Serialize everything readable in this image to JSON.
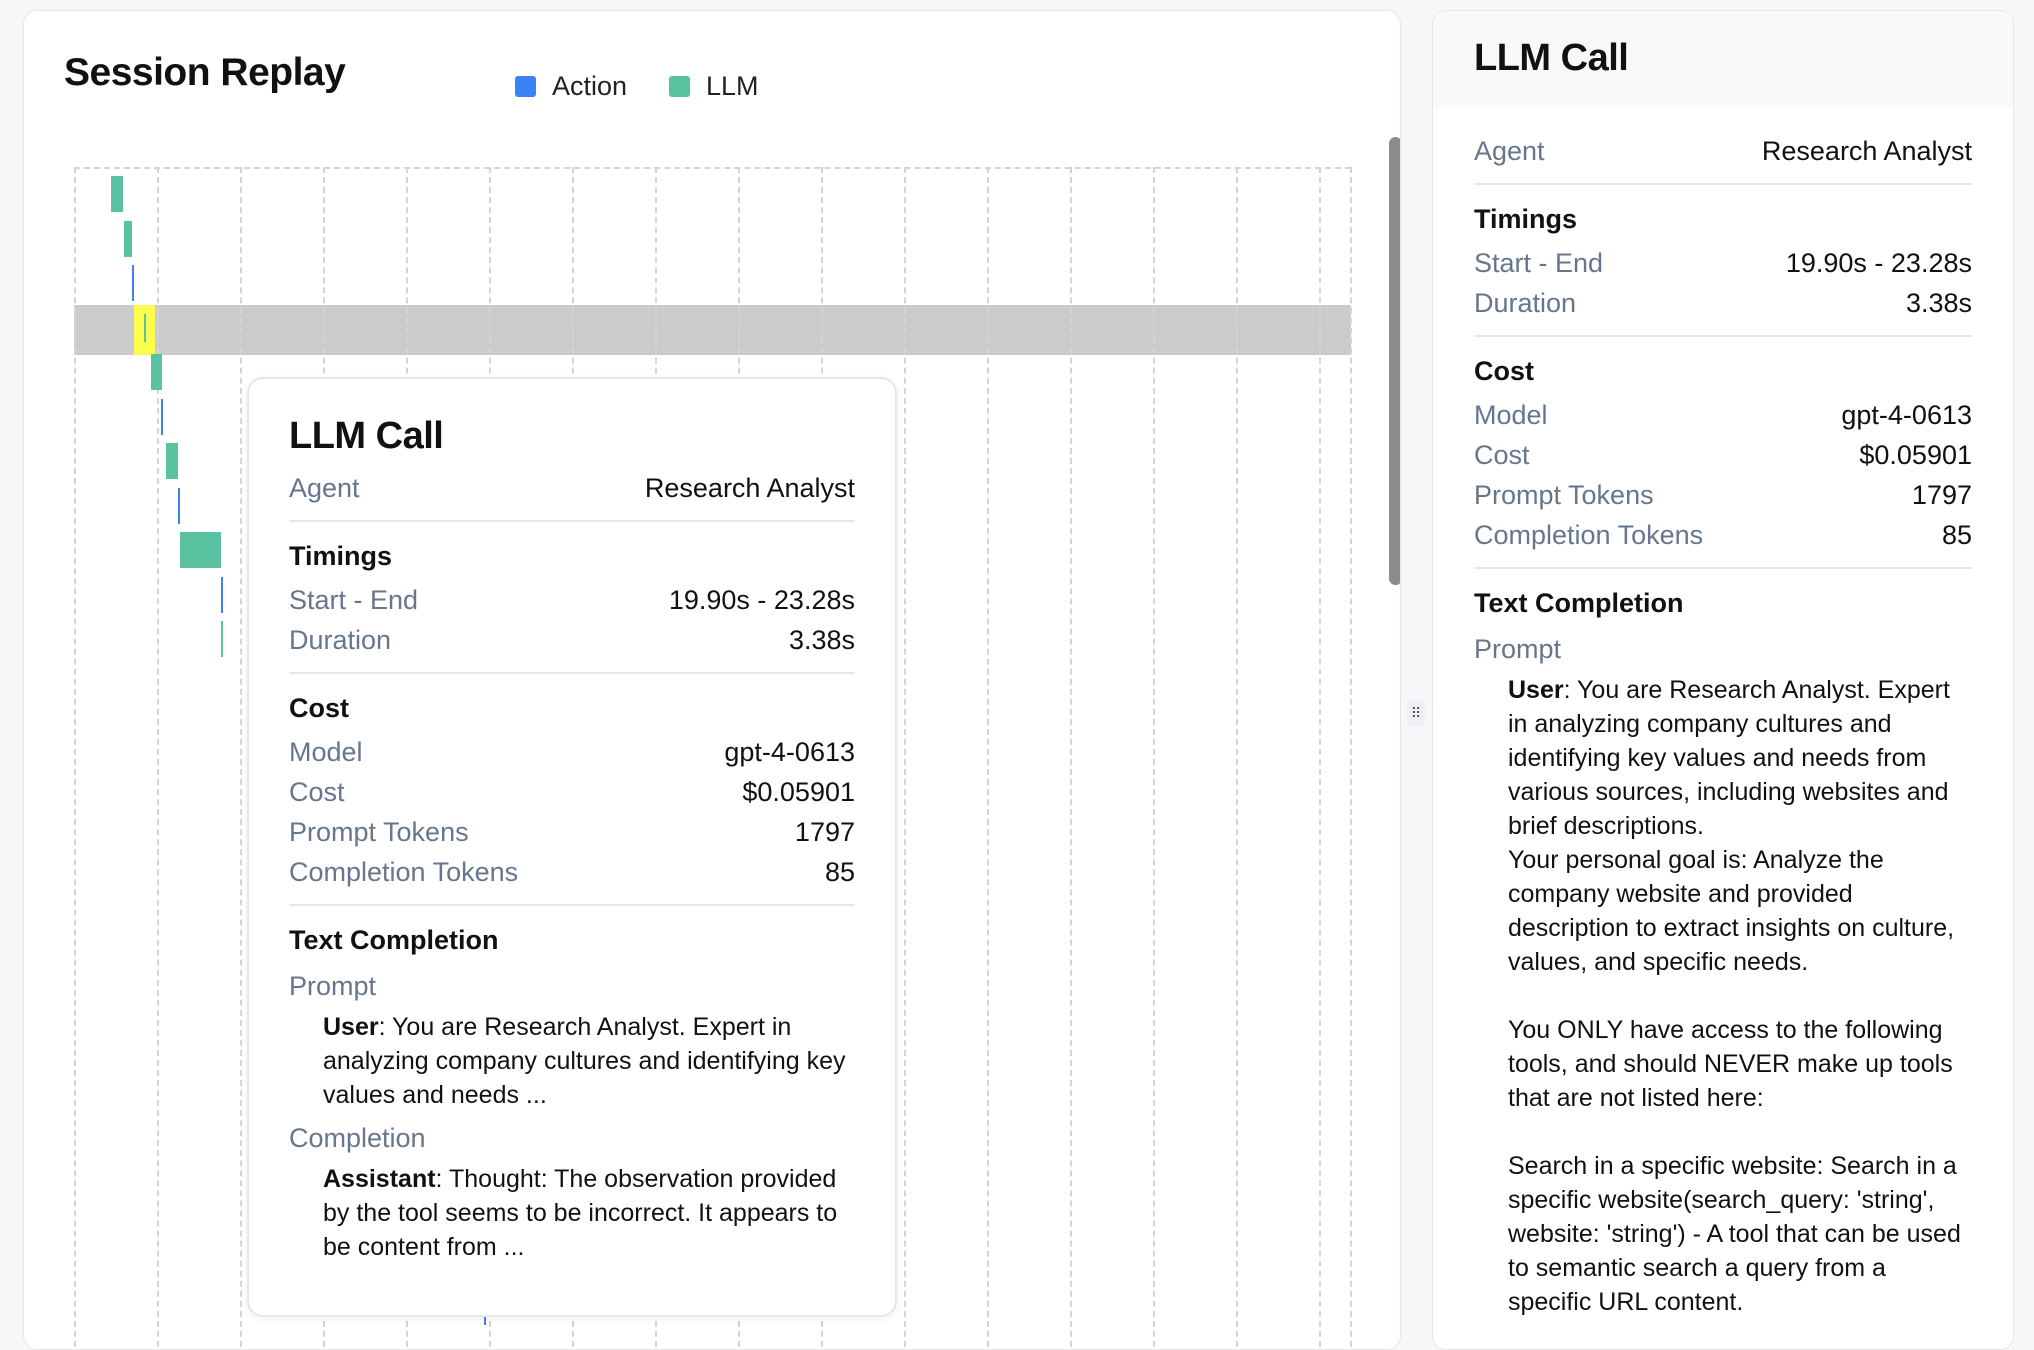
{
  "left_panel": {
    "title": "Session Replay",
    "legend": [
      {
        "label": "Action",
        "color": "#3b82f6"
      },
      {
        "label": "LLM",
        "color": "#5bc2a1"
      }
    ]
  },
  "chart_data": {
    "type": "gantt",
    "x_unit": "s",
    "highlight_color": "#fdfd4e",
    "colors": {
      "Action": "#3b82f6",
      "LLM": "#5bc2a1"
    },
    "highlighted_row": 3,
    "events": [
      {
        "row": 0,
        "type": "LLM",
        "start": 10.5,
        "end": 13.9
      },
      {
        "row": 1,
        "type": "LLM",
        "start": 14.1,
        "end": 16.5
      },
      {
        "row": 2,
        "type": "Action",
        "start": 16.5,
        "end": 17.0
      },
      {
        "row": 3,
        "type": "LLM",
        "start": 19.9,
        "end": 23.28
      },
      {
        "row": 4,
        "type": "LLM",
        "start": 21.9,
        "end": 25.0
      },
      {
        "row": 5,
        "type": "Action",
        "start": 24.7,
        "end": 25.3
      },
      {
        "row": 6,
        "type": "LLM",
        "start": 26.1,
        "end": 29.5
      },
      {
        "row": 7,
        "type": "Action",
        "start": 29.5,
        "end": 30.1
      },
      {
        "row": 8,
        "type": "LLM",
        "start": 30.1,
        "end": 41.7
      },
      {
        "row": 9,
        "type": "Action",
        "start": 41.7,
        "end": 42.0
      },
      {
        "row": 10,
        "type": "LLM",
        "start": 41.7,
        "end": 42.0
      },
      {
        "row": 25,
        "type": "Action",
        "start": 116.5,
        "end": 117.0
      }
    ]
  },
  "tooltip": {
    "title": "LLM Call",
    "agent_label": "Agent",
    "agent": "Research Analyst",
    "timings_title": "Timings",
    "start_end_label": "Start - End",
    "start_end": "19.90s - 23.28s",
    "duration_label": "Duration",
    "duration": "3.38s",
    "cost_title": "Cost",
    "model_label": "Model",
    "model": "gpt-4-0613",
    "cost_label": "Cost",
    "cost": "$0.05901",
    "prompt_tokens_label": "Prompt Tokens",
    "prompt_tokens": "1797",
    "completion_tokens_label": "Completion Tokens",
    "completion_tokens": "85",
    "text_completion_title": "Text Completion",
    "prompt_label": "Prompt",
    "prompt_role": "User",
    "prompt_text": ": You are Research Analyst. Expert in analyzing company cultures and identifying key values and needs ...",
    "completion_label": "Completion",
    "completion_role": "Assistant",
    "completion_text": ": Thought: The observation provided by the tool seems to be incorrect. It appears to be content from ..."
  },
  "side_panel": {
    "title": "LLM Call",
    "agent_label": "Agent",
    "agent": "Research Analyst",
    "timings_title": "Timings",
    "start_end_label": "Start - End",
    "start_end": "19.90s - 23.28s",
    "duration_label": "Duration",
    "duration": "3.38s",
    "cost_title": "Cost",
    "model_label": "Model",
    "model": "gpt-4-0613",
    "cost_label": "Cost",
    "cost": "$0.05901",
    "prompt_tokens_label": "Prompt Tokens",
    "prompt_tokens": "1797",
    "completion_tokens_label": "Completion Tokens",
    "completion_tokens": "85",
    "text_completion_title": "Text Completion",
    "prompt_label": "Prompt",
    "prompt_role": "User",
    "prompt_text": ": You are Research Analyst. Expert in analyzing company cultures and identifying key values and needs from various sources, including websites and brief descriptions.\nYour personal goal is: Analyze the company website and provided description to extract insights on culture, values, and specific needs.\n\nYou ONLY have access to the following tools, and should NEVER make up tools that are not listed here:\n\nSearch in a specific website: Search in a specific website(search_query: 'string', website: 'string') - A tool that can be used to semantic search a query from a specific URL content."
  }
}
